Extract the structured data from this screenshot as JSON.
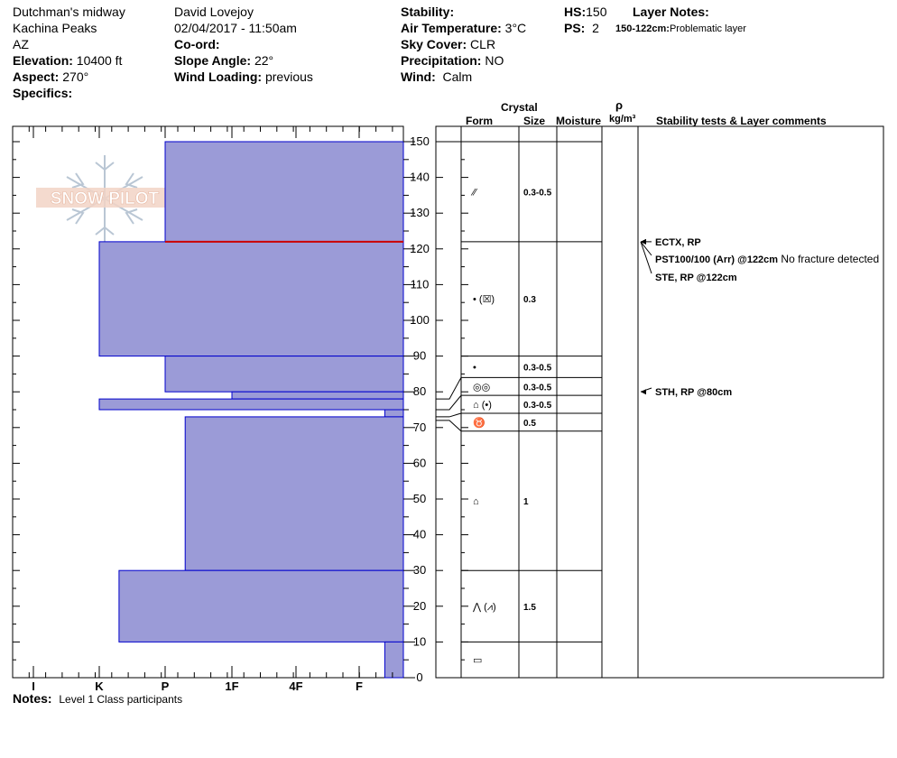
{
  "header": {
    "location": "Dutchman's midway",
    "area": "Kachina Peaks",
    "state": "AZ",
    "elevation_label": "Elevation:",
    "elevation_value": "10400 ft",
    "aspect_label": "Aspect:",
    "aspect_value": "270°",
    "specifics_label": "Specifics:",
    "observer": "David Lovejoy",
    "datetime": "02/04/2017 - 11:50am",
    "coord_label": "Co-ord:",
    "slope_label": "Slope Angle:",
    "slope_value": "22°",
    "wind_loading_label": "Wind Loading:",
    "wind_loading_value": "previous",
    "stability_label": "Stability:",
    "air_temp_label": "Air Temperature:",
    "air_temp_value": "3°C",
    "sky_label": "Sky Cover:",
    "sky_value": "CLR",
    "precip_label": "Precipitation:",
    "precip_value": "NO",
    "wind_label": "Wind:",
    "wind_value": "Calm",
    "hs_label": "HS:",
    "hs_value": "150",
    "ps_label": "PS:",
    "ps_value": "2",
    "layer_notes_label": "Layer Notes:",
    "layer_note_range": "150-122cm:",
    "layer_note_text": "Problematic layer"
  },
  "logo_text": "SNOW PILOT",
  "notes_label": "Notes:",
  "notes_text": "Level 1 Class participants",
  "columns": {
    "crystal": "Crystal",
    "form": "Form",
    "size": "Size",
    "moisture": "Moisture",
    "rho": "ρ",
    "density": "kg/m³",
    "comments": "Stability tests & Layer comments"
  },
  "colors": {
    "layer_fill": "#9b9bd7",
    "layer_edge": "#0000cc",
    "problem_line": "#cc0000"
  },
  "chart_data": {
    "type": "bar",
    "title": "",
    "xlabel": "",
    "ylabel": "",
    "ylim": [
      0,
      150
    ],
    "y_ticks": [
      0,
      10,
      20,
      30,
      40,
      50,
      60,
      70,
      80,
      90,
      100,
      110,
      120,
      130,
      140,
      150
    ],
    "hardness_categories": [
      "I",
      "K",
      "P",
      "1F",
      "4F",
      "F"
    ],
    "hardness_layers": [
      {
        "top": 150,
        "bottom": 122,
        "hardness_index": 2.0
      },
      {
        "top": 122,
        "bottom": 90,
        "hardness_index": 1.0
      },
      {
        "top": 90,
        "bottom": 80,
        "hardness_index": 2.0
      },
      {
        "top": 80,
        "bottom": 78,
        "hardness_index": 3.0
      },
      {
        "top": 78,
        "bottom": 75,
        "hardness_index": 1.0
      },
      {
        "top": 75,
        "bottom": 73,
        "hardness_index": 5.4
      },
      {
        "top": 73,
        "bottom": 30,
        "hardness_index": 2.3
      },
      {
        "top": 30,
        "bottom": 10,
        "hardness_index": 1.3
      },
      {
        "top": 10,
        "bottom": 0,
        "hardness_index": 5.4
      }
    ],
    "problem_layer_depth": 122,
    "layers": [
      {
        "top": 150,
        "bottom": 122,
        "form": "⁄⁄",
        "size": "0.3-0.5"
      },
      {
        "top": 122,
        "bottom": 90,
        "form": "•  (☒)",
        "size": "0.3"
      },
      {
        "top": 90,
        "bottom": 84,
        "form": "•",
        "size": "0.3-0.5"
      },
      {
        "top": 84,
        "bottom": 79,
        "form": "◎◎",
        "size": "0.3-0.5"
      },
      {
        "top": 79,
        "bottom": 74,
        "form": "⌂ (•)",
        "size": "0.3-0.5"
      },
      {
        "top": 74,
        "bottom": 69,
        "form": "♉",
        "size": "0.5"
      },
      {
        "top": 69,
        "bottom": 30,
        "form": "⌂",
        "size": "1"
      },
      {
        "top": 30,
        "bottom": 10,
        "form": "⋀ (⩘)",
        "size": "1.5"
      },
      {
        "top": 10,
        "bottom": 0,
        "form": "▭",
        "size": ""
      }
    ],
    "tests": [
      {
        "depth": 122,
        "label_bold": "ECTX, RP",
        "label_rest": ""
      },
      {
        "depth": 122,
        "label_bold": "PST100/100 (Arr) @122cm",
        "label_rest": "No fracture detected"
      },
      {
        "depth": 122,
        "label_bold": "STE, RP @122cm",
        "label_rest": ""
      },
      {
        "depth": 80,
        "label_bold": "STH, RP @80cm",
        "label_rest": ""
      }
    ]
  }
}
